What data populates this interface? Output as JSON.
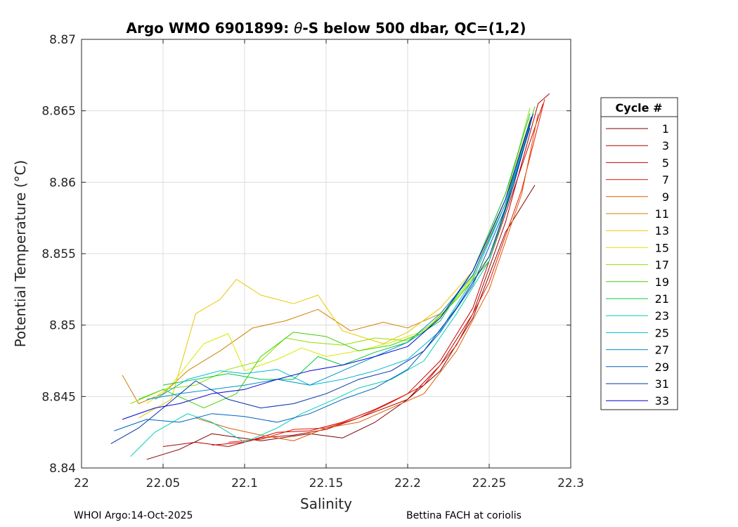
{
  "chart_data": {
    "type": "line",
    "title_prefix": "Argo WMO 6901899: ",
    "title_symbol": "θ",
    "title_suffix": "-S below 500 dbar,  QC=(1,2)",
    "xlabel": "Salinity",
    "ylabel": "Potential Temperature (°C)",
    "xlim": [
      22.0,
      22.3
    ],
    "ylim": [
      8.84,
      8.87
    ],
    "xticks": [
      22.0,
      22.05,
      22.1,
      22.15,
      22.2,
      22.25,
      22.3
    ],
    "xtick_labels": [
      "22",
      "22.05",
      "22.1",
      "22.15",
      "22.2",
      "22.25",
      "22.3"
    ],
    "yticks": [
      8.84,
      8.845,
      8.85,
      8.855,
      8.86,
      8.865,
      8.87
    ],
    "ytick_labels": [
      "8.84",
      "8.845",
      "8.85",
      "8.855",
      "8.86",
      "8.865",
      "8.87"
    ],
    "grid": true,
    "legend_title": "Cycle #",
    "legend_position": "outside-right",
    "series": [
      {
        "name": "1",
        "color": "#800000",
        "points": [
          [
            22.04,
            8.8406
          ],
          [
            22.06,
            8.8413
          ],
          [
            22.08,
            8.8424
          ],
          [
            22.11,
            8.8419
          ],
          [
            22.14,
            8.8424
          ],
          [
            22.16,
            8.8421
          ],
          [
            22.18,
            8.8432
          ],
          [
            22.2,
            8.8448
          ],
          [
            22.22,
            8.8468
          ],
          [
            22.24,
            8.8505
          ],
          [
            22.26,
            8.8565
          ],
          [
            22.278,
            8.8598
          ]
        ]
      },
      {
        "name": "3",
        "color": "#aa0000",
        "points": [
          [
            22.05,
            8.8415
          ],
          [
            22.07,
            8.8418
          ],
          [
            22.09,
            8.8415
          ],
          [
            22.11,
            8.8421
          ],
          [
            22.13,
            8.8423
          ],
          [
            22.15,
            8.8427
          ],
          [
            22.17,
            8.8435
          ],
          [
            22.2,
            8.8448
          ],
          [
            22.22,
            8.8472
          ],
          [
            22.24,
            8.8508
          ],
          [
            22.26,
            8.8572
          ],
          [
            22.28,
            8.8655
          ],
          [
            22.287,
            8.8662
          ]
        ]
      },
      {
        "name": "5",
        "color": "#cc0000",
        "points": [
          [
            22.08,
            8.8416
          ],
          [
            22.1,
            8.8418
          ],
          [
            22.12,
            8.8425
          ],
          [
            22.14,
            8.8426
          ],
          [
            22.16,
            8.8432
          ],
          [
            22.18,
            8.8441
          ],
          [
            22.2,
            8.8452
          ],
          [
            22.22,
            8.8475
          ],
          [
            22.24,
            8.8512
          ],
          [
            22.26,
            8.8578
          ],
          [
            22.283,
            8.8655
          ]
        ]
      },
      {
        "name": "7",
        "color": "#e81a00",
        "points": [
          [
            22.09,
            8.8418
          ],
          [
            22.11,
            8.842
          ],
          [
            22.13,
            8.8427
          ],
          [
            22.15,
            8.8428
          ],
          [
            22.17,
            8.8435
          ],
          [
            22.19,
            8.8446
          ],
          [
            22.21,
            8.8458
          ],
          [
            22.23,
            8.8486
          ],
          [
            22.25,
            8.853
          ],
          [
            22.27,
            8.8595
          ],
          [
            22.284,
            8.8658
          ]
        ]
      },
      {
        "name": "9",
        "color": "#e05a00",
        "points": [
          [
            22.07,
            8.8435
          ],
          [
            22.09,
            8.8428
          ],
          [
            22.11,
            8.8423
          ],
          [
            22.13,
            8.8419
          ],
          [
            22.15,
            8.8428
          ],
          [
            22.17,
            8.8432
          ],
          [
            22.19,
            8.8442
          ],
          [
            22.21,
            8.8452
          ],
          [
            22.23,
            8.8482
          ],
          [
            22.25,
            8.8525
          ],
          [
            22.27,
            8.8592
          ],
          [
            22.28,
            8.8648
          ]
        ]
      },
      {
        "name": "11",
        "color": "#d08000",
        "points": [
          [
            22.025,
            8.8465
          ],
          [
            22.035,
            8.8445
          ],
          [
            22.05,
            8.8452
          ],
          [
            22.065,
            8.8468
          ],
          [
            22.085,
            8.8482
          ],
          [
            22.105,
            8.8498
          ],
          [
            22.125,
            8.8503
          ],
          [
            22.145,
            8.8511
          ],
          [
            22.165,
            8.8496
          ],
          [
            22.185,
            8.8502
          ],
          [
            22.2,
            8.8498
          ],
          [
            22.22,
            8.8508
          ],
          [
            22.24,
            8.8535
          ],
          [
            22.26,
            8.8588
          ],
          [
            22.275,
            8.8638
          ]
        ]
      },
      {
        "name": "13",
        "color": "#e8c800",
        "points": [
          [
            22.035,
            8.8435
          ],
          [
            22.055,
            8.8448
          ],
          [
            22.07,
            8.8508
          ],
          [
            22.085,
            8.8518
          ],
          [
            22.095,
            8.8532
          ],
          [
            22.11,
            8.8521
          ],
          [
            22.13,
            8.8515
          ],
          [
            22.145,
            8.8521
          ],
          [
            22.16,
            8.8496
          ],
          [
            22.185,
            8.8487
          ],
          [
            22.2,
            8.8495
          ],
          [
            22.22,
            8.8512
          ],
          [
            22.24,
            8.8538
          ],
          [
            22.26,
            8.8592
          ],
          [
            22.275,
            8.8643
          ]
        ]
      },
      {
        "name": "15",
        "color": "#d8e800",
        "points": [
          [
            22.04,
            8.8445
          ],
          [
            22.055,
            8.8458
          ],
          [
            22.075,
            8.8487
          ],
          [
            22.09,
            8.8494
          ],
          [
            22.1,
            8.8468
          ],
          [
            22.12,
            8.8476
          ],
          [
            22.135,
            8.8484
          ],
          [
            22.15,
            8.8478
          ],
          [
            22.17,
            8.8482
          ],
          [
            22.19,
            8.8488
          ],
          [
            22.21,
            8.8496
          ],
          [
            22.23,
            8.8518
          ],
          [
            22.25,
            8.8548
          ],
          [
            22.265,
            8.8598
          ],
          [
            22.275,
            8.8645
          ]
        ]
      },
      {
        "name": "17",
        "color": "#90e000",
        "points": [
          [
            22.03,
            8.8445
          ],
          [
            22.05,
            8.8455
          ],
          [
            22.07,
            8.8458
          ],
          [
            22.09,
            8.8469
          ],
          [
            22.11,
            8.8475
          ],
          [
            22.125,
            8.8491
          ],
          [
            22.14,
            8.8488
          ],
          [
            22.16,
            8.8486
          ],
          [
            22.18,
            8.8491
          ],
          [
            22.2,
            8.8489
          ],
          [
            22.22,
            8.8505
          ],
          [
            22.24,
            8.8534
          ],
          [
            22.26,
            8.8588
          ],
          [
            22.275,
            8.8652
          ]
        ]
      },
      {
        "name": "19",
        "color": "#40d000",
        "points": [
          [
            22.035,
            8.8448
          ],
          [
            22.05,
            8.8455
          ],
          [
            22.075,
            8.8442
          ],
          [
            22.095,
            8.8452
          ],
          [
            22.11,
            8.8478
          ],
          [
            22.13,
            8.8495
          ],
          [
            22.15,
            8.8492
          ],
          [
            22.17,
            8.8482
          ],
          [
            22.19,
            8.8486
          ],
          [
            22.21,
            8.8495
          ],
          [
            22.23,
            8.8518
          ],
          [
            22.25,
            8.8545
          ],
          [
            22.265,
            8.8602
          ],
          [
            22.278,
            8.8653
          ]
        ]
      },
      {
        "name": "21",
        "color": "#00c840",
        "points": [
          [
            22.05,
            8.8458
          ],
          [
            22.07,
            8.8462
          ],
          [
            22.09,
            8.8466
          ],
          [
            22.11,
            8.8462
          ],
          [
            22.13,
            8.8462
          ],
          [
            22.145,
            8.8478
          ],
          [
            22.16,
            8.8472
          ],
          [
            22.18,
            8.8481
          ],
          [
            22.2,
            8.8488
          ],
          [
            22.22,
            8.8503
          ],
          [
            22.24,
            8.8538
          ],
          [
            22.26,
            8.8592
          ],
          [
            22.275,
            8.8648
          ]
        ]
      },
      {
        "name": "23",
        "color": "#00d0b0",
        "points": [
          [
            22.03,
            8.8408
          ],
          [
            22.045,
            8.8425
          ],
          [
            22.065,
            8.8438
          ],
          [
            22.08,
            8.8432
          ],
          [
            22.1,
            8.8418
          ],
          [
            22.12,
            8.8428
          ],
          [
            22.135,
            8.8438
          ],
          [
            22.155,
            8.8448
          ],
          [
            22.17,
            8.8456
          ],
          [
            22.19,
            8.8462
          ],
          [
            22.21,
            8.8475
          ],
          [
            22.23,
            8.8508
          ],
          [
            22.25,
            8.8545
          ],
          [
            22.265,
            8.8598
          ],
          [
            22.275,
            8.8642
          ]
        ]
      },
      {
        "name": "25",
        "color": "#00b8d0",
        "points": [
          [
            22.045,
            8.8448
          ],
          [
            22.065,
            8.8462
          ],
          [
            22.085,
            8.8468
          ],
          [
            22.1,
            8.8466
          ],
          [
            22.12,
            8.8469
          ],
          [
            22.14,
            8.8458
          ],
          [
            22.16,
            8.8462
          ],
          [
            22.18,
            8.8468
          ],
          [
            22.2,
            8.8476
          ],
          [
            22.22,
            8.8496
          ],
          [
            22.24,
            8.8532
          ],
          [
            22.26,
            8.8585
          ],
          [
            22.275,
            8.8638
          ]
        ]
      },
      {
        "name": "27",
        "color": "#0090c8",
        "points": [
          [
            22.04,
            8.8448
          ],
          [
            22.06,
            8.8452
          ],
          [
            22.08,
            8.8455
          ],
          [
            22.1,
            8.8458
          ],
          [
            22.12,
            8.8462
          ],
          [
            22.14,
            8.8458
          ],
          [
            22.16,
            8.8468
          ],
          [
            22.18,
            8.8478
          ],
          [
            22.2,
            8.8488
          ],
          [
            22.22,
            8.8508
          ],
          [
            22.24,
            8.8535
          ],
          [
            22.26,
            8.8585
          ],
          [
            22.275,
            8.8642
          ]
        ]
      },
      {
        "name": "29",
        "color": "#0060c0",
        "points": [
          [
            22.02,
            8.8426
          ],
          [
            22.04,
            8.8434
          ],
          [
            22.06,
            8.8432
          ],
          [
            22.08,
            8.8438
          ],
          [
            22.1,
            8.8436
          ],
          [
            22.12,
            8.8432
          ],
          [
            22.14,
            8.8438
          ],
          [
            22.16,
            8.8448
          ],
          [
            22.18,
            8.8456
          ],
          [
            22.2,
            8.8469
          ],
          [
            22.22,
            8.8495
          ],
          [
            22.24,
            8.8528
          ],
          [
            22.26,
            8.8582
          ],
          [
            22.275,
            8.8638
          ]
        ]
      },
      {
        "name": "31",
        "color": "#0030a8",
        "points": [
          [
            22.018,
            8.8417
          ],
          [
            22.035,
            8.8428
          ],
          [
            22.05,
            8.8442
          ],
          [
            22.07,
            8.8461
          ],
          [
            22.09,
            8.8448
          ],
          [
            22.11,
            8.8442
          ],
          [
            22.13,
            8.8445
          ],
          [
            22.15,
            8.8452
          ],
          [
            22.17,
            8.8462
          ],
          [
            22.19,
            8.8468
          ],
          [
            22.21,
            8.8482
          ],
          [
            22.23,
            8.8512
          ],
          [
            22.25,
            8.8548
          ],
          [
            22.265,
            8.8598
          ],
          [
            22.277,
            8.8648
          ]
        ]
      },
      {
        "name": "33",
        "color": "#0000d8",
        "points": [
          [
            22.025,
            8.8434
          ],
          [
            22.045,
            8.8442
          ],
          [
            22.06,
            8.8445
          ],
          [
            22.08,
            8.8452
          ],
          [
            22.1,
            8.8455
          ],
          [
            22.12,
            8.8462
          ],
          [
            22.14,
            8.8468
          ],
          [
            22.16,
            8.8472
          ],
          [
            22.18,
            8.8478
          ],
          [
            22.2,
            8.8485
          ],
          [
            22.22,
            8.8505
          ],
          [
            22.24,
            8.8538
          ],
          [
            22.26,
            8.8588
          ],
          [
            22.276,
            8.8646
          ]
        ]
      }
    ]
  },
  "footer": {
    "left": "WHOI Argo:14-Oct-2025",
    "right": "Bettina FACH at coriolis"
  }
}
